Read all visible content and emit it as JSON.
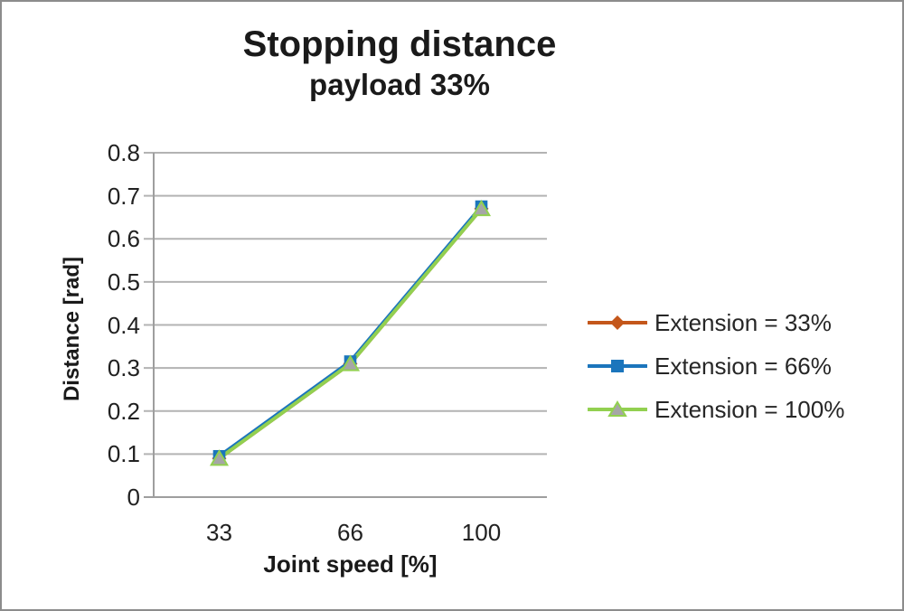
{
  "window": {
    "background": "#ffffff",
    "border_color": "#8c8c8c"
  },
  "chart_data": {
    "type": "line",
    "title": "Stopping distance",
    "subtitle": "payload 33%",
    "xlabel": "Joint speed [%]",
    "ylabel": "Distance [rad]",
    "categories": [
      "33",
      "66",
      "100"
    ],
    "y_ticks": [
      "0",
      "0.1",
      "0.2",
      "0.3",
      "0.4",
      "0.5",
      "0.6",
      "0.7",
      "0.8"
    ],
    "ylim": [
      0,
      0.8
    ],
    "grid": true,
    "legend_position": "right",
    "colors": {
      "gridline": "#b3b3b3",
      "axis": "#9e9e9e",
      "tick_text": "#212121",
      "title_text": "#1a1a1a"
    },
    "series": [
      {
        "name": "Extension = 33%",
        "marker": "diamond",
        "color": "#c4571b",
        "marker_fill": "#c4571b",
        "values": [
          0.09,
          0.31,
          0.67
        ]
      },
      {
        "name": "Extension = 66%",
        "marker": "square",
        "color": "#1b75bc",
        "marker_fill": "#1b75bc",
        "values": [
          0.095,
          0.315,
          0.675
        ]
      },
      {
        "name": "Extension = 100%",
        "marker": "triangle",
        "color": "#92d050",
        "marker_fill": "#a6a6a6",
        "values": [
          0.09,
          0.31,
          0.67
        ]
      }
    ]
  }
}
